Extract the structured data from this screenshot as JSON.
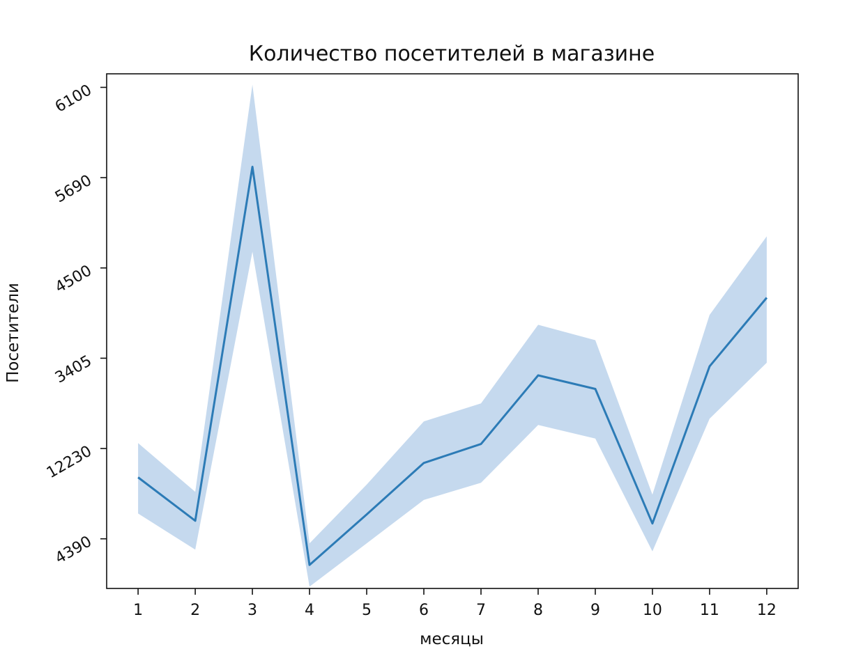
{
  "chart_data": {
    "type": "line",
    "title": "Количество посетителей в магазине",
    "xlabel": "месяцы",
    "ylabel": "Посетители",
    "x": [
      1,
      2,
      3,
      4,
      5,
      6,
      7,
      8,
      9,
      10,
      11,
      12
    ],
    "y_ticks": [
      {
        "label": "4390",
        "value": 0
      },
      {
        "label": "12230",
        "value": 1
      },
      {
        "label": "3405",
        "value": 2
      },
      {
        "label": "4500",
        "value": 3
      },
      {
        "label": "5690",
        "value": 4
      },
      {
        "label": "6100",
        "value": 5
      }
    ],
    "ylim": [
      -0.55,
      5.15
    ],
    "xlim": [
      0.45,
      12.55
    ],
    "series": [
      {
        "values": [
          0.68,
          0.2,
          4.12,
          -0.29,
          0.27,
          0.84,
          1.05,
          1.81,
          1.66,
          0.17,
          1.91,
          2.67
        ],
        "ci_upper": [
          1.06,
          0.52,
          5.03,
          -0.05,
          0.6,
          1.3,
          1.5,
          2.37,
          2.2,
          0.49,
          2.48,
          3.35
        ],
        "ci_lower": [
          0.28,
          -0.12,
          3.18,
          -0.53,
          -0.05,
          0.43,
          0.62,
          1.26,
          1.11,
          -0.14,
          1.33,
          1.95
        ],
        "color": "#2c7bb6",
        "band_color": "#c5d9ee"
      }
    ],
    "tick_label_rotation": 30,
    "grid": false,
    "legend": false
  }
}
